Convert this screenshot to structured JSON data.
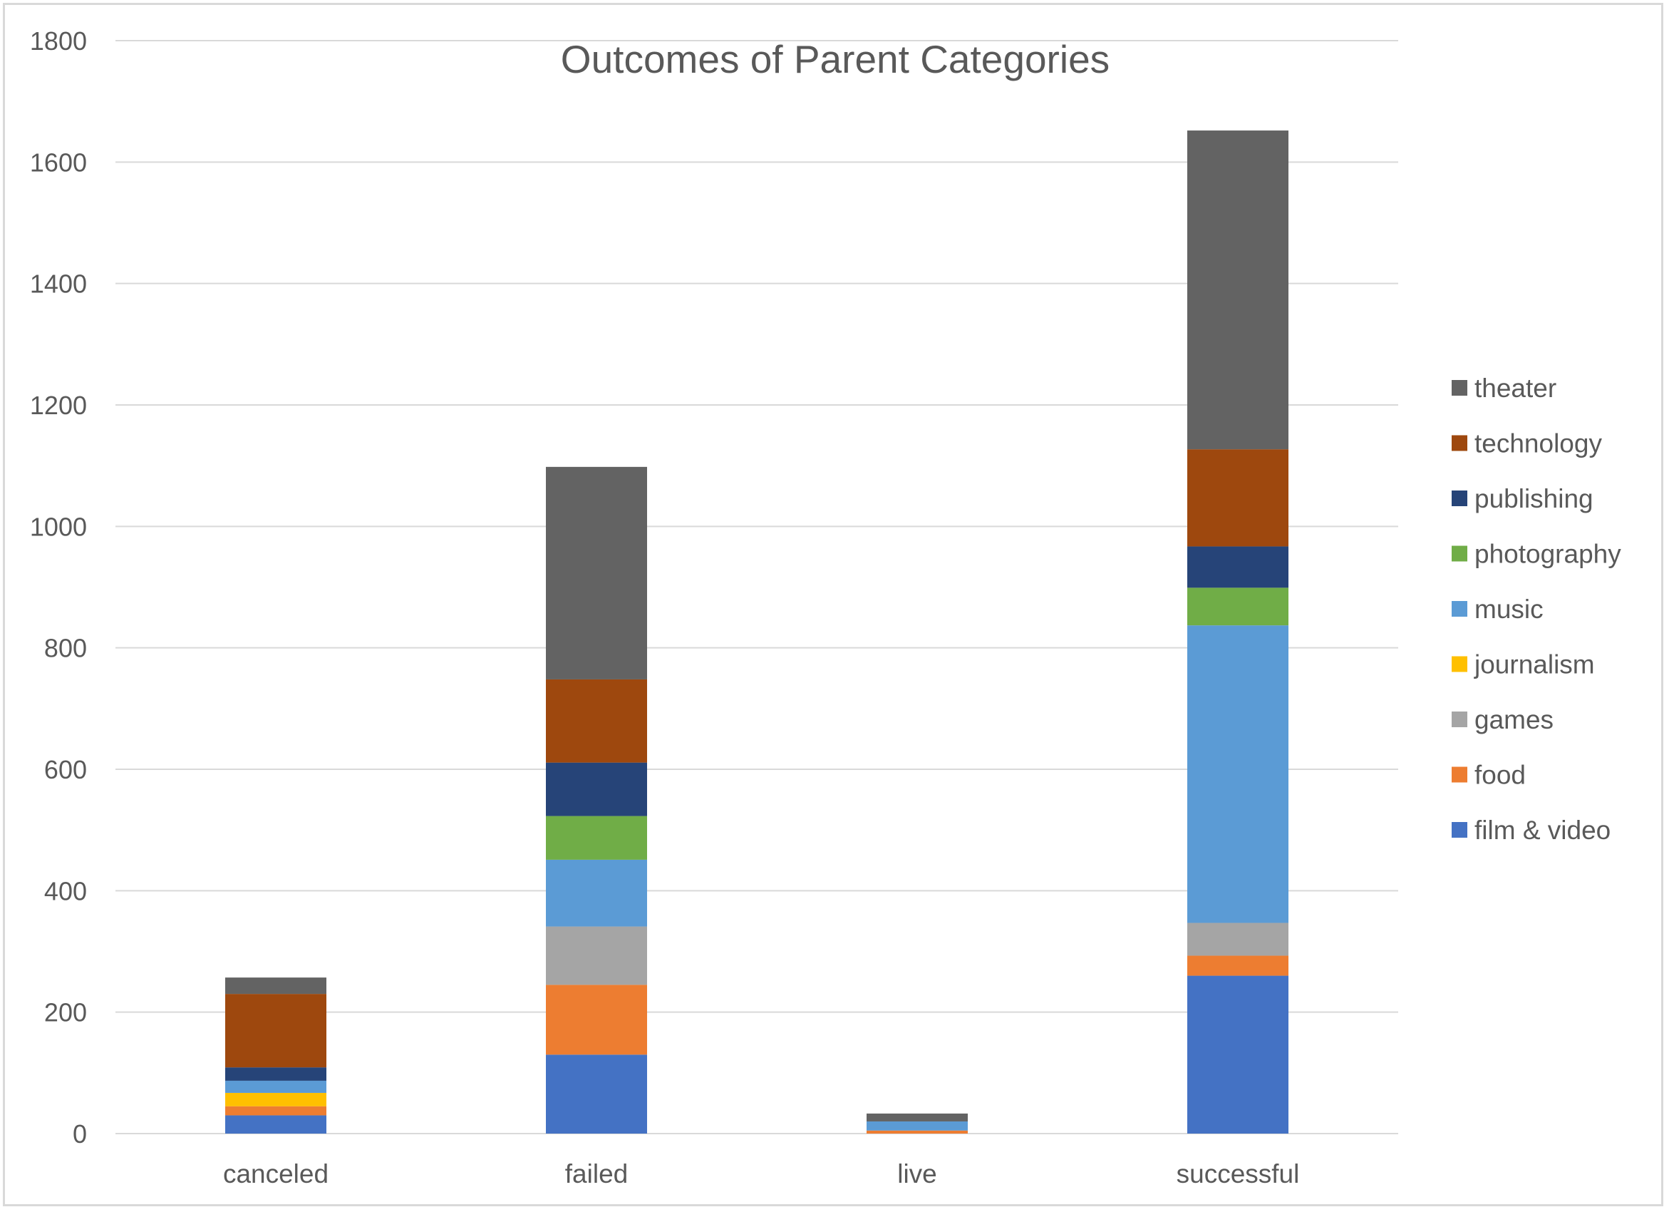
{
  "chart_data": {
    "type": "bar",
    "stacked": true,
    "title": "Outcomes of Parent Categories",
    "xlabel": "",
    "ylabel": "",
    "categories": [
      "canceled",
      "failed",
      "live",
      "successful"
    ],
    "ylim": [
      0,
      1800
    ],
    "yticks": [
      0,
      200,
      400,
      600,
      800,
      1000,
      1200,
      1400,
      1600,
      1800
    ],
    "grid": true,
    "legend_position": "right",
    "series": [
      {
        "name": "film & video",
        "color": "#4472C4",
        "values": [
          30,
          130,
          0,
          260
        ]
      },
      {
        "name": "food",
        "color": "#ED7D31",
        "values": [
          15,
          115,
          5,
          33
        ]
      },
      {
        "name": "games",
        "color": "#A5A5A5",
        "values": [
          0,
          96,
          0,
          54
        ]
      },
      {
        "name": "journalism",
        "color": "#FFC000",
        "values": [
          22,
          0,
          0,
          0
        ]
      },
      {
        "name": "music",
        "color": "#5B9BD5",
        "values": [
          20,
          110,
          15,
          490
        ]
      },
      {
        "name": "photography",
        "color": "#70AD47",
        "values": [
          0,
          72,
          0,
          62
        ]
      },
      {
        "name": "publishing",
        "color": "#264478",
        "values": [
          22,
          88,
          0,
          68
        ]
      },
      {
        "name": "technology",
        "color": "#9E480E",
        "values": [
          121,
          137,
          0,
          160
        ]
      },
      {
        "name": "theater",
        "color": "#636363",
        "values": [
          27,
          350,
          13,
          525
        ]
      }
    ]
  }
}
